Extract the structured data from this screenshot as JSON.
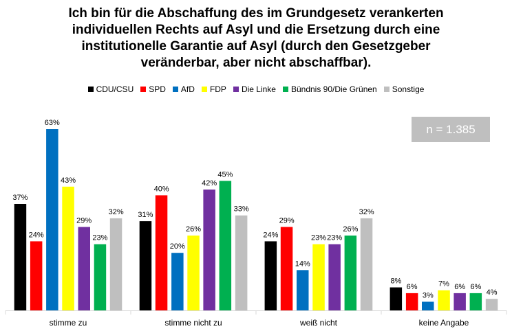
{
  "title_lines": [
    "Ich bin für die Abschaffung des im Grundgesetz verankerten",
    "individuellen Rechts auf Asyl und die Ersetzung durch eine",
    "institutionelle Garantie auf Asyl (durch den Gesetzgeber",
    "veränderbar, aber nicht abschaffbar)."
  ],
  "n_label": "n = 1.385",
  "chart_data": {
    "type": "bar",
    "title": "Ich bin für die Abschaffung des im Grundgesetz verankerten individuellen Rechts auf Asyl und die Ersetzung durch eine institutionelle Garantie auf Asyl (durch den Gesetzgeber veränderbar, aber nicht abschaffbar).",
    "categories": [
      "stimme zu",
      "stimme nicht zu",
      "weiß nicht",
      "keine Angabe"
    ],
    "series": [
      {
        "name": "CDU/CSU",
        "color": "#000000",
        "values": [
          37,
          31,
          24,
          8
        ]
      },
      {
        "name": "SPD",
        "color": "#ff0000",
        "values": [
          24,
          40,
          29,
          6
        ]
      },
      {
        "name": "AfD",
        "color": "#0070c0",
        "values": [
          63,
          20,
          14,
          3
        ]
      },
      {
        "name": "FDP",
        "color": "#ffff00",
        "values": [
          43,
          26,
          23,
          7
        ]
      },
      {
        "name": "Die Linke",
        "color": "#7030a0",
        "values": [
          29,
          42,
          23,
          6
        ]
      },
      {
        "name": "Bündnis 90/Die Grünen",
        "color": "#00b050",
        "values": [
          23,
          45,
          26,
          6
        ]
      },
      {
        "name": "Sonstige",
        "color": "#bfbfbf",
        "values": [
          32,
          33,
          32,
          4
        ]
      }
    ],
    "value_suffix": "%",
    "ylim": [
      0,
      63
    ],
    "legend_position": "top",
    "grid": false
  }
}
